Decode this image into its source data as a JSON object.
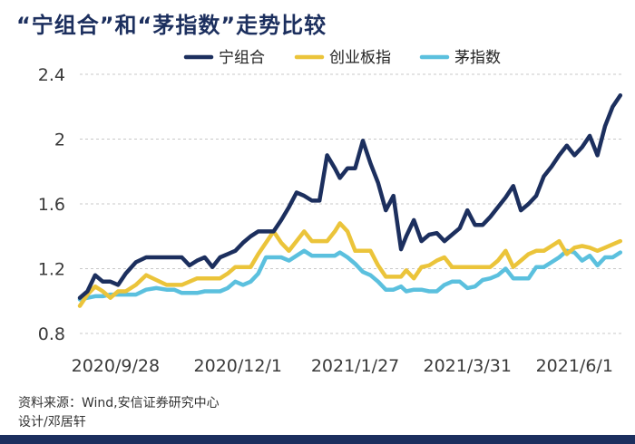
{
  "chart_data": {
    "type": "line",
    "title": "“宁组合”和“茅指数”走势比较",
    "source": "资料来源：Wind,安信证券研究中心",
    "credit": "设计/邓居轩",
    "ylim": [
      0.8,
      2.4
    ],
    "yticks": [
      0.8,
      1.2,
      1.6,
      2,
      2.4
    ],
    "ytick_labels": [
      "0.8",
      "1.2",
      "1.6",
      "2",
      "2.4"
    ],
    "xlim": [
      0,
      100
    ],
    "xticks": [
      {
        "x": 7,
        "label": "2020/9/28"
      },
      {
        "x": 31,
        "label": "2020/12/1"
      },
      {
        "x": 54,
        "label": "2021/1/27"
      },
      {
        "x": 76,
        "label": "2021/3/31"
      },
      {
        "x": 97,
        "label": "2021/6/1"
      }
    ],
    "grid": true,
    "legend_position": "top",
    "colors": {
      "text": "#1c2f5e",
      "grid": "#c8c8c8"
    },
    "series": [
      {
        "name": "宁组合",
        "color": "#1c2f5e",
        "x": [
          0,
          1.5,
          3,
          4.5,
          6,
          7.5,
          9,
          11,
          13,
          15,
          17,
          18.5,
          20,
          21.5,
          23,
          24.5,
          26,
          27.5,
          29,
          30.5,
          32,
          33.5,
          35,
          36.5,
          38,
          39.5,
          41,
          42.5,
          44,
          45.5,
          47,
          48.5,
          50,
          51,
          52.5,
          54,
          55.5,
          57,
          58.5,
          60,
          61.5,
          63,
          64,
          65.5,
          67,
          68.5,
          70,
          71.5,
          73,
          74.5,
          76,
          77.5,
          79,
          80.5,
          82,
          83.5,
          85,
          86.5,
          88,
          89.5,
          91,
          92.5,
          94,
          95.5,
          97,
          98.5,
          100,
          101.5,
          103,
          104.5,
          106
        ],
        "values": [
          1.02,
          1.06,
          1.16,
          1.12,
          1.12,
          1.1,
          1.17,
          1.24,
          1.27,
          1.27,
          1.27,
          1.27,
          1.27,
          1.22,
          1.25,
          1.27,
          1.21,
          1.27,
          1.29,
          1.31,
          1.36,
          1.4,
          1.43,
          1.43,
          1.43,
          1.5,
          1.58,
          1.67,
          1.65,
          1.62,
          1.62,
          1.9,
          1.82,
          1.76,
          1.82,
          1.82,
          1.99,
          1.85,
          1.73,
          1.56,
          1.65,
          1.32,
          1.4,
          1.5,
          1.37,
          1.41,
          1.42,
          1.37,
          1.41,
          1.45,
          1.56,
          1.47,
          1.47,
          1.52,
          1.58,
          1.64,
          1.71,
          1.56,
          1.6,
          1.65,
          1.77,
          1.83,
          1.9,
          1.96,
          1.9,
          1.95,
          2.02,
          1.9,
          2.08,
          2.2,
          2.27
        ]
      },
      {
        "name": "创业板指",
        "color": "#ebc43a",
        "x": [
          0,
          1.5,
          3,
          4.5,
          6,
          7.5,
          9,
          11,
          13,
          15,
          17,
          18.5,
          20,
          21.5,
          23,
          24.5,
          26,
          27.5,
          29,
          30.5,
          32,
          33.5,
          35,
          36.5,
          38,
          39.5,
          41,
          42.5,
          44,
          45.5,
          47,
          48.5,
          50,
          51,
          52.5,
          54,
          55.5,
          57,
          58.5,
          60,
          61.5,
          63,
          64,
          65.5,
          67,
          68.5,
          70,
          71.5,
          73,
          74.5,
          76,
          77.5,
          79,
          80.5,
          82,
          83.5,
          85,
          86.5,
          88,
          89.5,
          91,
          92.5,
          94,
          95.5,
          97,
          98.5,
          100,
          101.5,
          103,
          104.5,
          106
        ],
        "values": [
          0.97,
          1.04,
          1.09,
          1.06,
          1.02,
          1.06,
          1.06,
          1.1,
          1.16,
          1.13,
          1.1,
          1.1,
          1.1,
          1.12,
          1.14,
          1.14,
          1.14,
          1.14,
          1.17,
          1.21,
          1.21,
          1.21,
          1.29,
          1.36,
          1.43,
          1.36,
          1.31,
          1.37,
          1.43,
          1.37,
          1.37,
          1.37,
          1.43,
          1.48,
          1.43,
          1.31,
          1.31,
          1.31,
          1.22,
          1.15,
          1.15,
          1.15,
          1.19,
          1.14,
          1.21,
          1.22,
          1.25,
          1.27,
          1.21,
          1.21,
          1.21,
          1.21,
          1.21,
          1.21,
          1.25,
          1.31,
          1.21,
          1.25,
          1.29,
          1.31,
          1.31,
          1.34,
          1.37,
          1.29,
          1.33,
          1.34,
          1.33,
          1.31,
          1.33,
          1.35,
          1.37
        ]
      },
      {
        "name": "茅指数",
        "color": "#5bc0de",
        "x": [
          0,
          1.5,
          3,
          4.5,
          6,
          7.5,
          9,
          11,
          13,
          15,
          17,
          18.5,
          20,
          21.5,
          23,
          24.5,
          26,
          27.5,
          29,
          30.5,
          32,
          33.5,
          35,
          36.5,
          38,
          39.5,
          41,
          42.5,
          44,
          45.5,
          47,
          48.5,
          50,
          51,
          52.5,
          54,
          55.5,
          57,
          58.5,
          60,
          61.5,
          63,
          64,
          65.5,
          67,
          68.5,
          70,
          71.5,
          73,
          74.5,
          76,
          77.5,
          79,
          80.5,
          82,
          83.5,
          85,
          86.5,
          88,
          89.5,
          91,
          92.5,
          94,
          95.5,
          97,
          98.5,
          100,
          101.5,
          103,
          104.5,
          106
        ],
        "values": [
          1.01,
          1.02,
          1.03,
          1.03,
          1.04,
          1.04,
          1.04,
          1.04,
          1.07,
          1.08,
          1.07,
          1.07,
          1.05,
          1.05,
          1.05,
          1.06,
          1.06,
          1.06,
          1.08,
          1.12,
          1.1,
          1.12,
          1.17,
          1.27,
          1.27,
          1.27,
          1.25,
          1.28,
          1.31,
          1.28,
          1.28,
          1.28,
          1.28,
          1.3,
          1.27,
          1.23,
          1.18,
          1.16,
          1.12,
          1.07,
          1.07,
          1.09,
          1.06,
          1.07,
          1.07,
          1.06,
          1.06,
          1.1,
          1.12,
          1.12,
          1.08,
          1.09,
          1.13,
          1.14,
          1.16,
          1.2,
          1.14,
          1.14,
          1.14,
          1.21,
          1.21,
          1.24,
          1.27,
          1.31,
          1.3,
          1.25,
          1.28,
          1.22,
          1.27,
          1.27,
          1.3
        ]
      }
    ]
  }
}
